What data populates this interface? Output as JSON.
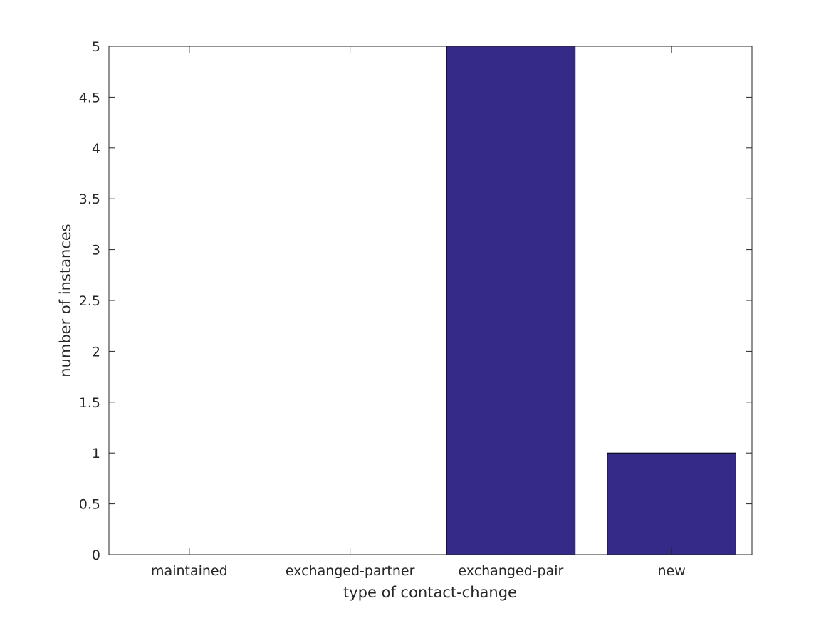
{
  "chart_data": {
    "type": "bar",
    "title": "",
    "xlabel": "type of contact-change",
    "ylabel": "number of instances",
    "categories": [
      "maintained",
      "exchanged-partner",
      "exchanged-pair",
      "new"
    ],
    "values": [
      0,
      0,
      5,
      1
    ],
    "ylim": [
      0,
      5
    ],
    "yticks": [
      0,
      0.5,
      1,
      1.5,
      2,
      2.5,
      3,
      3.5,
      4,
      4.5,
      5
    ],
    "ytick_labels": [
      "0",
      "0.5",
      "1",
      "1.5",
      "2",
      "2.5",
      "3",
      "3.5",
      "4",
      "4.5",
      "5"
    ],
    "bar_color": "#352a87",
    "grid": false,
    "legend": "none"
  }
}
